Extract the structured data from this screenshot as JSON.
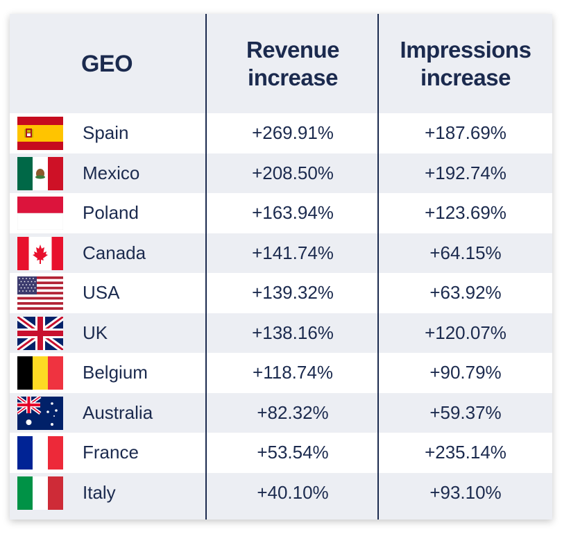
{
  "header": {
    "geo": "GEO",
    "revenue": "Revenue increase",
    "impressions": "Impressions increase"
  },
  "rows": [
    {
      "country": "Spain",
      "revenue": "+269.91%",
      "impressions": "+187.69%"
    },
    {
      "country": "Mexico",
      "revenue": "+208.50%",
      "impressions": "+192.74%"
    },
    {
      "country": "Poland",
      "revenue": "+163.94%",
      "impressions": "+123.69%"
    },
    {
      "country": "Canada",
      "revenue": "+141.74%",
      "impressions": "+64.15%"
    },
    {
      "country": "USA",
      "revenue": "+139.32%",
      "impressions": "+63.92%"
    },
    {
      "country": "UK",
      "revenue": "+138.16%",
      "impressions": "+120.07%"
    },
    {
      "country": "Belgium",
      "revenue": "+118.74%",
      "impressions": "+90.79%"
    },
    {
      "country": "Australia",
      "revenue": "+82.32%",
      "impressions": "+59.37%"
    },
    {
      "country": "France",
      "revenue": "+53.54%",
      "impressions": "+235.14%"
    },
    {
      "country": "Italy",
      "revenue": "+40.10%",
      "impressions": "+93.10%"
    }
  ],
  "chart_data": {
    "type": "table",
    "columns": [
      "GEO",
      "Revenue increase",
      "Impressions increase"
    ],
    "rows": [
      [
        "Spain",
        "+269.91%",
        "+187.69%"
      ],
      [
        "Mexico",
        "+208.50%",
        "+192.74%"
      ],
      [
        "Poland",
        "+163.94%",
        "+123.69%"
      ],
      [
        "Canada",
        "+141.74%",
        "+64.15%"
      ],
      [
        "USA",
        "+139.32%",
        "+63.92%"
      ],
      [
        "UK",
        "+138.16%",
        "+120.07%"
      ],
      [
        "Belgium",
        "+118.74%",
        "+90.79%"
      ],
      [
        "Australia",
        "+82.32%",
        "+59.37%"
      ],
      [
        "France",
        "+53.54%",
        "+235.14%"
      ],
      [
        "Italy",
        "+40.10%",
        "+93.10%"
      ]
    ]
  },
  "colors": {
    "text": "#1b2a4e",
    "divider": "#1b2a4e",
    "band": "#eceef3",
    "row_alt": "#ffffff"
  }
}
